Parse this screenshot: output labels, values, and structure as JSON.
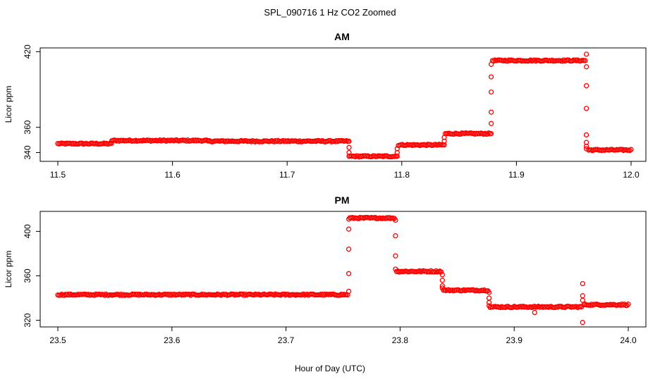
{
  "figure": {
    "title": "SPL_090716  1 Hz CO2 Zoomed",
    "xlabel": "Hour of Day (UTC)"
  },
  "chart_data": [
    {
      "type": "scatter",
      "title": "AM",
      "xlabel": "Hour of Day (UTC)",
      "ylabel": "Licor ppm",
      "xlim": [
        11.5,
        12.0
      ],
      "ylim": [
        333,
        423
      ],
      "xticks": [
        11.5,
        11.6,
        11.7,
        11.8,
        11.9,
        12.0
      ],
      "xtick_labels": [
        "11.5",
        "11.6",
        "11.7",
        "11.8",
        "11.9",
        "12.0"
      ],
      "yticks": [
        340,
        360,
        420
      ],
      "ytick_labels": [
        "340",
        "360",
        "420"
      ],
      "marker": "open-circle",
      "color": "#ff0000",
      "grid": false,
      "series": [
        {
          "segments": [
            {
              "x_start": 11.5,
              "x_end": 11.547,
              "y": 347
            },
            {
              "x_start": 11.547,
              "x_end": 11.63,
              "y": 349.5
            },
            {
              "x_start": 11.63,
              "x_end": 11.753,
              "y": 349
            },
            {
              "x_start": 11.755,
              "x_end": 11.795,
              "y": 337
            },
            {
              "x_start": 11.797,
              "x_end": 11.836,
              "y": 346
            },
            {
              "x_start": 11.838,
              "x_end": 11.877,
              "y": 355
            },
            {
              "x_start": 11.879,
              "x_end": 11.96,
              "y": 413
            },
            {
              "x_start": 11.963,
              "x_end": 12.0,
              "y": 342
            }
          ],
          "transitions": [
            {
              "x": 11.754,
              "y": [
                349,
                344,
                340,
                337
              ]
            },
            {
              "x": 11.796,
              "y": [
                337,
                340,
                343
              ]
            },
            {
              "x": 11.837,
              "y": [
                346,
                349,
                352
              ]
            },
            {
              "x": 11.878,
              "y": [
                355,
                363,
                372,
                388,
                400,
                410
              ]
            },
            {
              "x": 11.961,
              "y": [
                418,
                408,
                393,
                375,
                354,
                348,
                345,
                343
              ]
            }
          ]
        }
      ]
    },
    {
      "type": "scatter",
      "title": "PM",
      "xlabel": "Hour of Day (UTC)",
      "ylabel": "Licor ppm",
      "xlim": [
        23.5,
        24.0
      ],
      "ylim": [
        314,
        418
      ],
      "xticks": [
        23.5,
        23.6,
        23.7,
        23.8,
        23.9,
        24.0
      ],
      "xtick_labels": [
        "23.5",
        "23.6",
        "23.7",
        "23.8",
        "23.9",
        "24.0"
      ],
      "yticks": [
        320,
        360,
        400
      ],
      "ytick_labels": [
        "320",
        "360",
        "400"
      ],
      "marker": "open-circle",
      "color": "#ff0000",
      "grid": false,
      "series": [
        {
          "segments": [
            {
              "x_start": 23.5,
              "x_end": 23.754,
              "y": 343
            },
            {
              "x_start": 23.756,
              "x_end": 23.795,
              "y": 412
            },
            {
              "x_start": 23.797,
              "x_end": 23.836,
              "y": 364
            },
            {
              "x_start": 23.838,
              "x_end": 23.877,
              "y": 347
            },
            {
              "x_start": 23.879,
              "x_end": 23.959,
              "y": 332
            },
            {
              "x_start": 23.961,
              "x_end": 24.0,
              "y": 334
            }
          ],
          "transitions": [
            {
              "x": 23.755,
              "y": [
                346,
                362,
                384,
                402,
                411
              ]
            },
            {
              "x": 23.796,
              "y": [
                410,
                396,
                378,
                366
              ]
            },
            {
              "x": 23.837,
              "y": [
                361,
                356,
                351,
                349
              ]
            },
            {
              "x": 23.878,
              "y": [
                345,
                340,
                336,
                333
              ]
            },
            {
              "x": 23.918,
              "y": [
                327
              ]
            },
            {
              "x": 23.96,
              "y": [
                318,
                353,
                342,
                338
              ]
            }
          ]
        }
      ]
    }
  ]
}
